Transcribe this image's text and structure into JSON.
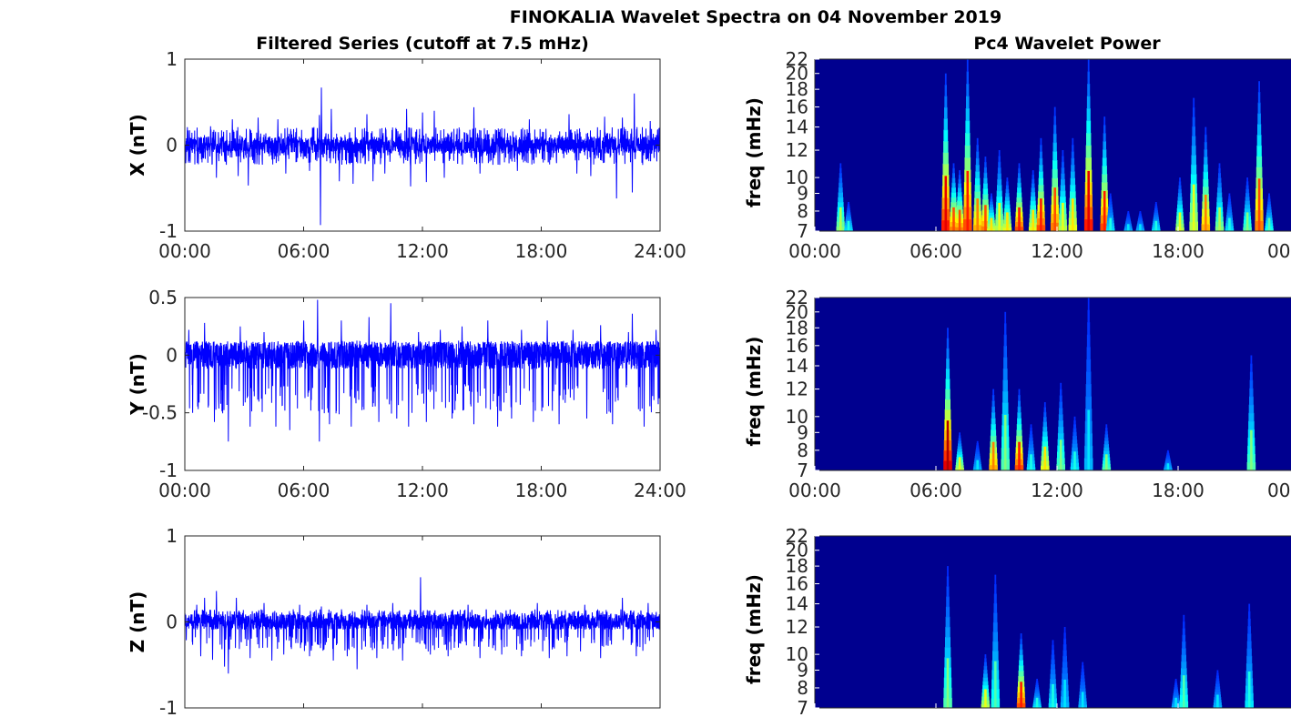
{
  "figure": {
    "suptitle": "FINOKALIA Wavelet Spectra on 04 November 2019"
  },
  "colors": {
    "series": "#0000ff",
    "axis": "#262626",
    "heat_low": "#00008f"
  },
  "chart_data": [
    {
      "id": "x-series",
      "type": "line",
      "title": "Filtered Series (cutoff at 7.5 mHz)",
      "ylabel": "X (nT)",
      "ylim": [
        -1,
        1
      ],
      "yticks": [
        -1,
        0,
        1
      ],
      "ytick_labels": [
        "-1",
        "0",
        "1"
      ],
      "xlim": [
        0,
        24
      ],
      "xticks": [
        0,
        6,
        12,
        18,
        24
      ],
      "xtick_labels": [
        "00:00",
        "06:00",
        "12:00",
        "18:00",
        "24:00"
      ],
      "noise_amp": 0.1,
      "min_env": -0.2,
      "max_env": 0.2,
      "extremes": [
        [
          1.3,
          0.22
        ],
        [
          1.6,
          -0.38
        ],
        [
          2.4,
          0.3
        ],
        [
          2.7,
          -0.36
        ],
        [
          3.2,
          -0.47
        ],
        [
          3.7,
          0.32
        ],
        [
          4.7,
          0.3
        ],
        [
          5.1,
          -0.33
        ],
        [
          6.3,
          -0.3
        ],
        [
          6.8,
          0.35
        ],
        [
          6.9,
          0.67
        ],
        [
          6.85,
          -0.93
        ],
        [
          7.4,
          0.42
        ],
        [
          7.8,
          -0.42
        ],
        [
          8.5,
          -0.45
        ],
        [
          9.2,
          0.36
        ],
        [
          9.5,
          -0.42
        ],
        [
          10.1,
          -0.33
        ],
        [
          11.2,
          0.42
        ],
        [
          11.4,
          -0.48
        ],
        [
          12.0,
          0.38
        ],
        [
          12.2,
          -0.43
        ],
        [
          12.6,
          0.4
        ],
        [
          13.1,
          -0.38
        ],
        [
          14.6,
          0.44
        ],
        [
          14.9,
          -0.33
        ],
        [
          16.8,
          -0.3
        ],
        [
          17.4,
          0.3
        ],
        [
          19.4,
          0.36
        ],
        [
          19.8,
          -0.33
        ],
        [
          20.5,
          -0.36
        ],
        [
          21.2,
          0.33
        ],
        [
          21.8,
          -0.62
        ],
        [
          22.1,
          0.32
        ],
        [
          22.7,
          0.6
        ],
        [
          22.6,
          -0.55
        ],
        [
          23.5,
          0.28
        ]
      ]
    },
    {
      "id": "y-series",
      "type": "line",
      "title": "",
      "ylabel": "Y (nT)",
      "ylim": [
        -1,
        0.5
      ],
      "yticks": [
        -1,
        -0.5,
        0,
        0.5
      ],
      "ytick_labels": [
        "-1",
        "-0.5",
        "0",
        "0.5"
      ],
      "xlim": [
        0,
        24
      ],
      "xticks": [
        0,
        6,
        12,
        18,
        24
      ],
      "xtick_labels": [
        "00:00",
        "06:00",
        "12:00",
        "18:00",
        "24:00"
      ],
      "noise_amp": 0.12,
      "min_env": -0.45,
      "max_env": 0.12,
      "extremes": [
        [
          0.2,
          0.22
        ],
        [
          0.4,
          -0.5
        ],
        [
          1.0,
          0.28
        ],
        [
          1.5,
          -0.58
        ],
        [
          2.2,
          -0.75
        ],
        [
          2.8,
          0.25
        ],
        [
          3.3,
          -0.62
        ],
        [
          4.0,
          0.2
        ],
        [
          4.6,
          -0.62
        ],
        [
          5.3,
          -0.65
        ],
        [
          6.0,
          0.3
        ],
        [
          6.7,
          0.48
        ],
        [
          6.8,
          -0.75
        ],
        [
          7.3,
          -0.6
        ],
        [
          7.9,
          0.3
        ],
        [
          8.4,
          -0.62
        ],
        [
          9.3,
          0.33
        ],
        [
          9.8,
          -0.58
        ],
        [
          10.4,
          0.45
        ],
        [
          10.7,
          -0.55
        ],
        [
          11.3,
          -0.62
        ],
        [
          11.8,
          0.2
        ],
        [
          12.2,
          -0.58
        ],
        [
          12.9,
          0.22
        ],
        [
          13.5,
          -0.55
        ],
        [
          14.0,
          0.25
        ],
        [
          14.6,
          -0.6
        ],
        [
          15.3,
          0.3
        ],
        [
          15.8,
          -0.62
        ],
        [
          16.5,
          -0.55
        ],
        [
          17.0,
          0.22
        ],
        [
          17.6,
          -0.58
        ],
        [
          18.3,
          0.3
        ],
        [
          18.9,
          -0.6
        ],
        [
          19.6,
          0.22
        ],
        [
          20.3,
          -0.55
        ],
        [
          21.0,
          0.26
        ],
        [
          21.6,
          -0.6
        ],
        [
          22.4,
          0.2
        ],
        [
          22.6,
          0.36
        ],
        [
          23.2,
          -0.62
        ],
        [
          23.8,
          0.22
        ]
      ]
    },
    {
      "id": "z-series",
      "type": "line",
      "title": "",
      "ylabel": "Z (nT)",
      "ylim": [
        -1,
        1
      ],
      "yticks": [
        -1,
        0,
        1
      ],
      "ytick_labels": [
        "-1",
        "0",
        "1"
      ],
      "xlim": [
        0,
        24
      ],
      "xticks": [
        0,
        6,
        12,
        18,
        24
      ],
      "xtick_labels": [
        "",
        "",
        "",
        "",
        ""
      ],
      "noise_amp": 0.09,
      "min_env": -0.3,
      "max_env": 0.14,
      "extremes": [
        [
          0.6,
          0.2
        ],
        [
          0.8,
          -0.4
        ],
        [
          1.4,
          -0.44
        ],
        [
          1.0,
          0.28
        ],
        [
          1.6,
          0.36
        ],
        [
          2.0,
          -0.52
        ],
        [
          2.2,
          -0.6
        ],
        [
          2.6,
          0.28
        ],
        [
          3.3,
          -0.42
        ],
        [
          4.0,
          0.22
        ],
        [
          4.4,
          -0.45
        ],
        [
          5.0,
          -0.38
        ],
        [
          5.8,
          0.2
        ],
        [
          6.3,
          -0.4
        ],
        [
          6.9,
          0.18
        ],
        [
          7.5,
          -0.45
        ],
        [
          8.2,
          -0.4
        ],
        [
          8.7,
          -0.55
        ],
        [
          9.2,
          0.2
        ],
        [
          9.7,
          -0.42
        ],
        [
          10.5,
          0.22
        ],
        [
          11.0,
          -0.45
        ],
        [
          11.9,
          0.52
        ],
        [
          12.4,
          -0.38
        ],
        [
          13.3,
          -0.4
        ],
        [
          14.3,
          0.2
        ],
        [
          14.9,
          -0.42
        ],
        [
          16.0,
          -0.38
        ],
        [
          17.0,
          -0.4
        ],
        [
          17.8,
          0.22
        ],
        [
          18.4,
          -0.42
        ],
        [
          19.3,
          -0.4
        ],
        [
          20.2,
          0.2
        ],
        [
          21.0,
          -0.42
        ],
        [
          22.1,
          0.28
        ],
        [
          22.8,
          -0.4
        ],
        [
          23.4,
          0.22
        ]
      ]
    },
    {
      "id": "x-power",
      "type": "heatmap",
      "title": "Pc4 Wavelet Power",
      "ylabel": "freq (mHz)",
      "ylim": [
        7,
        22
      ],
      "yscale": "log",
      "yticks": [
        7,
        8,
        9,
        10,
        12,
        14,
        16,
        18,
        20,
        22
      ],
      "ytick_labels": [
        "7",
        "8",
        "9",
        "10",
        "12",
        "14",
        "16",
        "18",
        "20",
        "22"
      ],
      "xlim": [
        0,
        24
      ],
      "xticks": [
        0,
        6,
        12,
        18,
        24
      ],
      "xtick_labels": [
        "00:00",
        "06:00",
        "12:00",
        "18:00",
        "00"
      ],
      "events": [
        [
          1.3,
          0.5,
          11
        ],
        [
          1.7,
          0.35,
          8.5
        ],
        [
          6.6,
          0.85,
          20
        ],
        [
          7.0,
          0.75,
          11
        ],
        [
          7.3,
          0.75,
          10.5
        ],
        [
          7.7,
          0.8,
          22
        ],
        [
          8.2,
          0.7,
          13
        ],
        [
          8.6,
          0.75,
          11.5
        ],
        [
          8.9,
          0.6,
          9
        ],
        [
          9.3,
          0.55,
          12
        ],
        [
          9.7,
          0.6,
          10
        ],
        [
          10.3,
          0.8,
          11
        ],
        [
          11.0,
          0.6,
          10.5
        ],
        [
          11.4,
          0.8,
          13
        ],
        [
          12.1,
          0.75,
          16
        ],
        [
          12.5,
          0.55,
          12
        ],
        [
          13.0,
          0.6,
          13
        ],
        [
          13.8,
          0.85,
          22
        ],
        [
          14.6,
          0.8,
          15
        ],
        [
          14.9,
          0.35,
          9
        ],
        [
          15.8,
          0.3,
          8
        ],
        [
          16.4,
          0.3,
          8
        ],
        [
          17.2,
          0.35,
          8.5
        ],
        [
          18.4,
          0.55,
          10
        ],
        [
          19.1,
          0.55,
          17
        ],
        [
          19.7,
          0.7,
          14
        ],
        [
          20.4,
          0.5,
          11
        ],
        [
          20.9,
          0.35,
          9
        ],
        [
          21.8,
          0.45,
          10
        ],
        [
          22.4,
          0.75,
          19
        ],
        [
          22.9,
          0.4,
          9
        ]
      ]
    },
    {
      "id": "y-power",
      "type": "heatmap",
      "title": "",
      "ylabel": "freq (mHz)",
      "ylim": [
        7,
        22
      ],
      "yscale": "log",
      "yticks": [
        7,
        8,
        9,
        10,
        12,
        14,
        16,
        18,
        20,
        22
      ],
      "ytick_labels": [
        "7",
        "8",
        "9",
        "10",
        "12",
        "14",
        "16",
        "18",
        "20",
        "22"
      ],
      "xlim": [
        0,
        24
      ],
      "xticks": [
        0,
        6,
        12,
        18,
        24
      ],
      "xtick_labels": [
        "00:00",
        "06:00",
        "12:00",
        "18:00",
        "00"
      ],
      "events": [
        [
          6.7,
          0.9,
          18
        ],
        [
          7.3,
          0.55,
          9
        ],
        [
          8.2,
          0.3,
          8.5
        ],
        [
          9.0,
          0.7,
          12
        ],
        [
          9.6,
          0.45,
          20
        ],
        [
          10.3,
          0.8,
          12
        ],
        [
          10.9,
          0.35,
          9.5
        ],
        [
          11.6,
          0.6,
          11
        ],
        [
          12.4,
          0.45,
          12.5
        ],
        [
          13.1,
          0.35,
          10
        ],
        [
          14.7,
          0.45,
          9.5
        ],
        [
          17.8,
          0.3,
          8
        ],
        [
          22.0,
          0.45,
          15
        ],
        [
          13.8,
          0.3,
          22
        ]
      ]
    },
    {
      "id": "z-power",
      "type": "heatmap",
      "title": "",
      "ylabel": "freq (mHz)",
      "ylim": [
        7,
        22
      ],
      "yscale": "log",
      "yticks": [
        7,
        8,
        9,
        10,
        12,
        14,
        16,
        18,
        20,
        22
      ],
      "ytick_labels": [
        "7",
        "8",
        "9",
        "10",
        "12",
        "14",
        "16",
        "18",
        "20",
        "22"
      ],
      "xlim": [
        0,
        24
      ],
      "xticks": [
        0,
        6,
        12,
        18,
        24
      ],
      "xtick_labels": [
        "",
        "",
        "",
        "",
        ""
      ],
      "events": [
        [
          6.7,
          0.45,
          18
        ],
        [
          8.6,
          0.55,
          10
        ],
        [
          9.1,
          0.4,
          17
        ],
        [
          10.4,
          0.8,
          11.5
        ],
        [
          11.2,
          0.35,
          8.5
        ],
        [
          12.0,
          0.35,
          11
        ],
        [
          12.6,
          0.3,
          12
        ],
        [
          13.5,
          0.3,
          9.5
        ],
        [
          18.2,
          0.3,
          8.5
        ],
        [
          18.6,
          0.4,
          13
        ],
        [
          20.3,
          0.3,
          9
        ],
        [
          21.9,
          0.35,
          14
        ]
      ]
    }
  ]
}
